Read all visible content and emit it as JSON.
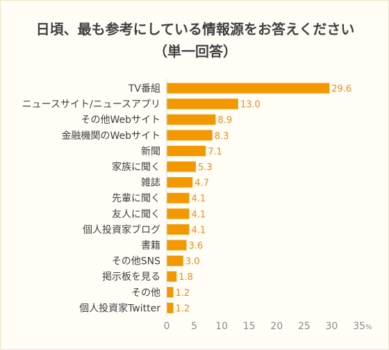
{
  "chart_data": {
    "type": "bar",
    "orientation": "horizontal",
    "title": "日頃、最も参考にしている情報源をお答えください",
    "subtitle": "（単一回答）",
    "categories": [
      "TV番組",
      "ニュースサイト/ニュースアプリ",
      "その他Webサイト",
      "金融機関のWebサイト",
      "新聞",
      "家族に聞く",
      "雑誌",
      "先輩に聞く",
      "友人に聞く",
      "個人投資家ブログ",
      "書籍",
      "その他SNS",
      "掲示板を見る",
      "その他",
      "個人投資家Twitter"
    ],
    "values": [
      29.6,
      13.0,
      8.9,
      8.3,
      7.1,
      5.3,
      4.7,
      4.1,
      4.1,
      4.1,
      3.6,
      3.0,
      1.8,
      1.2,
      1.2
    ],
    "value_labels": [
      "29.6",
      "13.0",
      "8.9",
      "8.3",
      "7.1",
      "5.3",
      "4.7",
      "4.1",
      "4.1",
      "4.1",
      "3.6",
      "3.0",
      "1.8",
      "1.2",
      "1.2"
    ],
    "x_ticks": [
      "0",
      "5",
      "10",
      "15",
      "20",
      "25",
      "30",
      "35"
    ],
    "x_unit": "%",
    "xlim": [
      0,
      35
    ],
    "grid": false,
    "bar_color": "#f39800",
    "value_label_color": "#ee8a17"
  }
}
